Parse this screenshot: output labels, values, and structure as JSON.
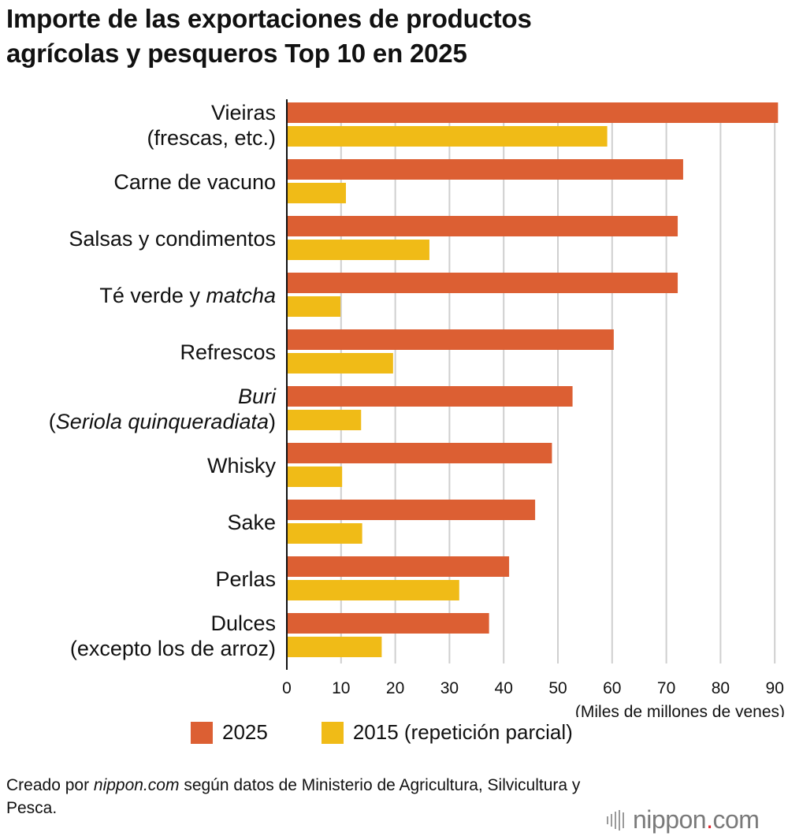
{
  "title_lines": [
    "Importe de las exportaciones de productos",
    "agrícolas y pesqueros  Top 10 en 2025"
  ],
  "chart_data": {
    "type": "bar",
    "orientation": "horizontal",
    "categories": [
      {
        "parts": [
          {
            "t": "Vieiras",
            "italic": false
          }
        ],
        "line2": [
          {
            "t": "(frescas, etc.)",
            "italic": false
          }
        ]
      },
      {
        "parts": [
          {
            "t": "Carne de vacuno",
            "italic": false
          }
        ],
        "line2": null
      },
      {
        "parts": [
          {
            "t": "Salsas y condimentos",
            "italic": false
          }
        ],
        "line2": null
      },
      {
        "parts": [
          {
            "t": "Té verde y ",
            "italic": false
          },
          {
            "t": "matcha",
            "italic": true
          }
        ],
        "line2": null
      },
      {
        "parts": [
          {
            "t": "Refrescos",
            "italic": false
          }
        ],
        "line2": null
      },
      {
        "parts": [
          {
            "t": "Buri",
            "italic": true
          }
        ],
        "line2": [
          {
            "t": "(",
            "italic": false
          },
          {
            "t": "Seriola quinqueradiata",
            "italic": true
          },
          {
            "t": ")",
            "italic": false
          }
        ]
      },
      {
        "parts": [
          {
            "t": "Whisky",
            "italic": false
          }
        ],
        "line2": null
      },
      {
        "parts": [
          {
            "t": "Sake",
            "italic": false
          }
        ],
        "line2": null
      },
      {
        "parts": [
          {
            "t": "Perlas",
            "italic": false
          }
        ],
        "line2": null
      },
      {
        "parts": [
          {
            "t": "Dulces",
            "italic": false
          }
        ],
        "line2": [
          {
            "t": "(excepto los de arroz)",
            "italic": false
          }
        ]
      }
    ],
    "series": [
      {
        "name": "2025",
        "color": "#dc5f33",
        "values": [
          90.6,
          73.1,
          72.1,
          72.1,
          60.3,
          52.7,
          48.9,
          45.8,
          41.0,
          37.3
        ]
      },
      {
        "name": "2015 (repetición parcial)",
        "color": "#f0bb17",
        "values": [
          59.1,
          10.9,
          26.3,
          9.9,
          19.6,
          13.7,
          10.2,
          13.9,
          31.8,
          17.5
        ]
      }
    ],
    "xlim": [
      0,
      90
    ],
    "ticks": [
      "0",
      "10",
      "20",
      "30",
      "40",
      "50",
      "60",
      "70",
      "80",
      "90"
    ],
    "xlabel": "(Miles de millones de yenes)",
    "grid": true,
    "legend_position": "bottom"
  },
  "source_prefix": "Creado por ",
  "source_site": "nippon.com",
  "source_suffix": " según datos de Ministerio de Agricultura, Silvicultura y Pesca.",
  "logo": {
    "name": "nippon",
    "dot": ".",
    "tld": "com"
  }
}
